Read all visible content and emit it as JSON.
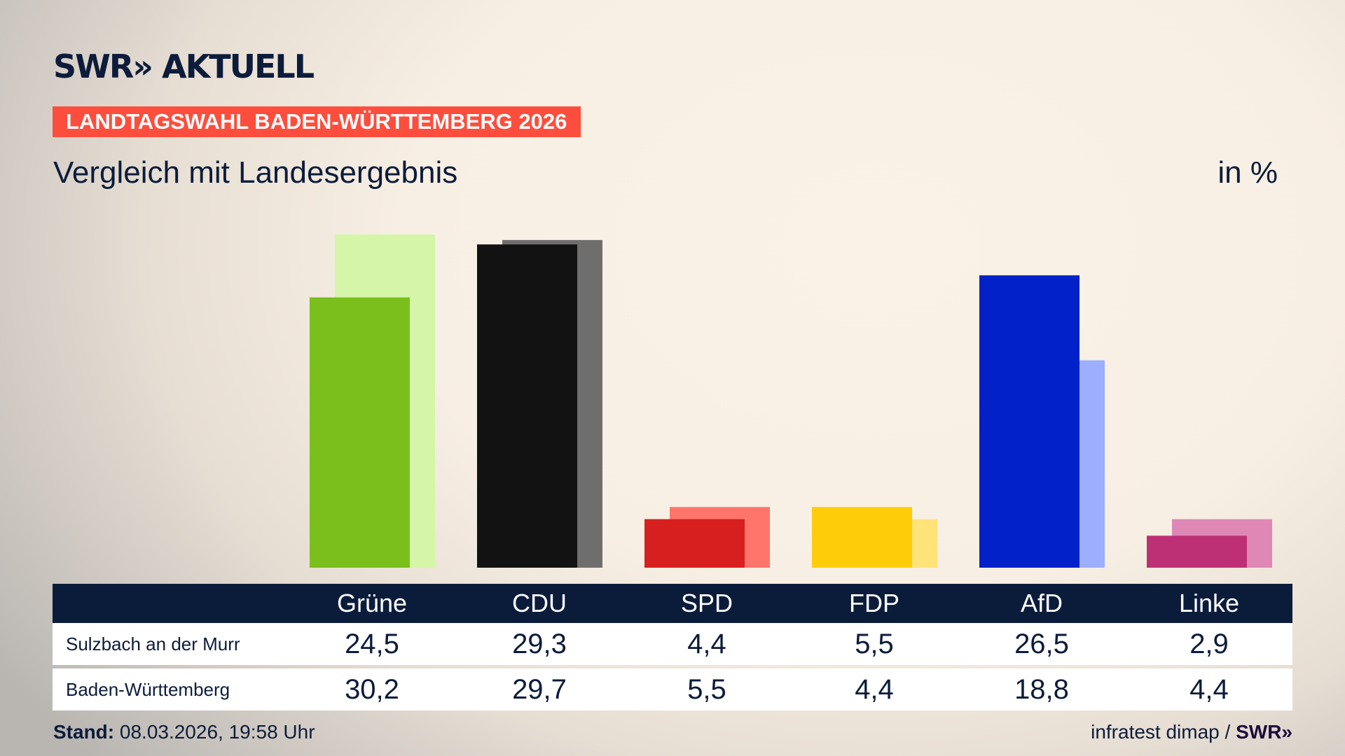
{
  "brand": {
    "logo": "SWR» AKTUELL"
  },
  "banner": "LANDTAGSWAHL BADEN-WÜRTTEMBERG 2026",
  "subtitle": "Vergleich mit Landesergebnis",
  "unit": "in %",
  "chart_data": {
    "type": "bar",
    "categories": [
      "Grüne",
      "CDU",
      "SPD",
      "FDP",
      "AfD",
      "Linke"
    ],
    "series": [
      {
        "name": "Sulzbach an der Murr",
        "values": [
          24.5,
          29.3,
          4.4,
          5.5,
          26.5,
          2.9
        ],
        "display": [
          "24,5",
          "29,3",
          "4,4",
          "5,5",
          "26,5",
          "2,9"
        ],
        "colors": [
          "#7abf1c",
          "#121212",
          "#d71f1f",
          "#ffcc0a",
          "#0221c8",
          "#bd3075"
        ]
      },
      {
        "name": "Baden-Württemberg",
        "values": [
          30.2,
          29.7,
          5.5,
          4.4,
          18.8,
          4.4
        ],
        "display": [
          "30,2",
          "29,7",
          "5,5",
          "4,4",
          "18,8",
          "4,4"
        ],
        "colors": [
          "#d5f6a9",
          "#6f6e6d",
          "#ff756b",
          "#ffe278",
          "#9eaefe",
          "#df88b6"
        ]
      }
    ],
    "ylim": [
      0,
      30.2
    ]
  },
  "footer": {
    "stand_label": "Stand:",
    "stand_value": " 08.03.2026, 19:58 Uhr",
    "source": "infratest dimap / ",
    "source_brand": "SWR»"
  }
}
